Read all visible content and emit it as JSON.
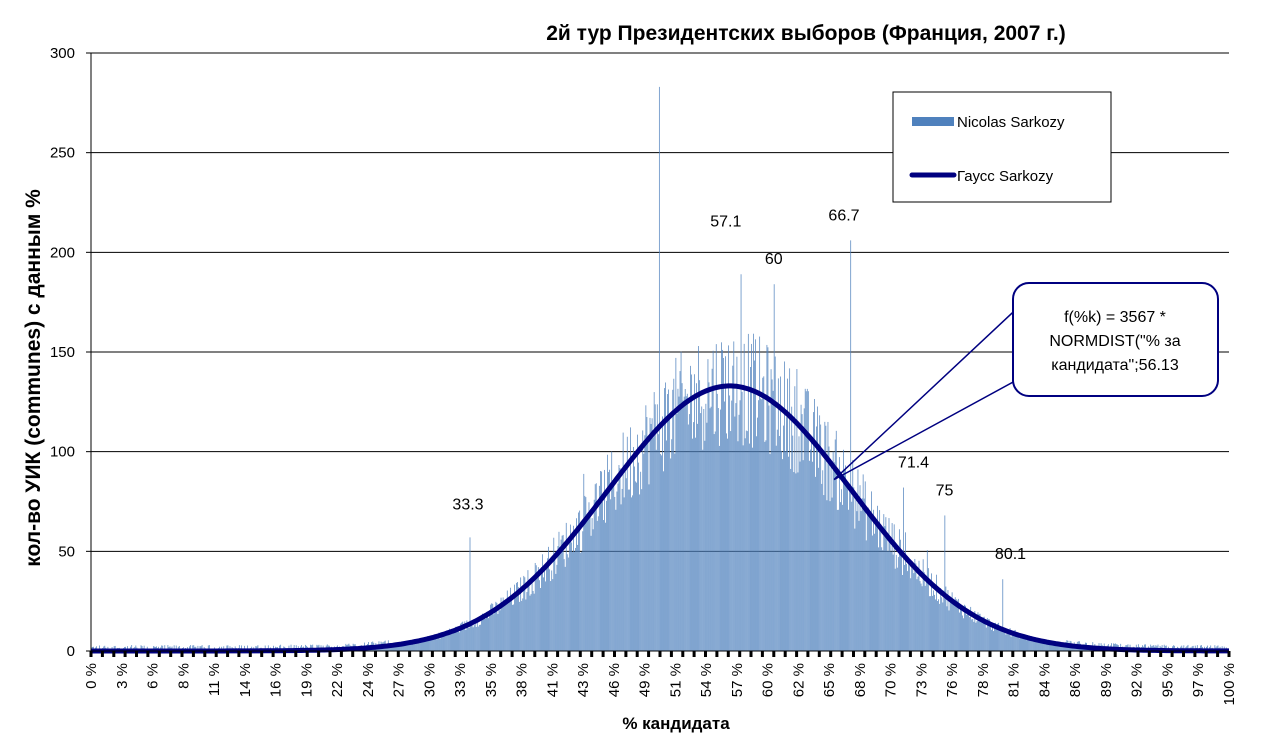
{
  "chart_data": {
    "type": "bar",
    "title": "2й тур Президентских выборов (Франция, 2007 г.)",
    "xlabel": "% кандидата",
    "ylabel": "кол-во УИК (communes) с данным %",
    "ylim": [
      0,
      300
    ],
    "y_ticks": [
      0,
      50,
      100,
      150,
      200,
      250,
      300
    ],
    "xlim": [
      0,
      100
    ],
    "x_tick_labels": [
      "0 %",
      "3 %",
      "6 %",
      "8 %",
      "11 %",
      "14 %",
      "16 %",
      "19 %",
      "22 %",
      "24 %",
      "27 %",
      "30 %",
      "33 %",
      "35 %",
      "38 %",
      "41 %",
      "43 %",
      "46 %",
      "49 %",
      "51 %",
      "54 %",
      "57 %",
      "60 %",
      "62 %",
      "65 %",
      "68 %",
      "70 %",
      "73 %",
      "76 %",
      "78 %",
      "81 %",
      "84 %",
      "86 %",
      "89 %",
      "92 %",
      "95 %",
      "97 %",
      "100 %"
    ],
    "grid": "horizontal",
    "legend_position": "top-right",
    "bar_color": "#4f81bd",
    "line_color": "#000080",
    "series": [
      {
        "name": "Nicolas Sarkozy",
        "kind": "bar",
        "description_points": [
          {
            "x": 33.3,
            "y": 57
          },
          {
            "x": 49.9,
            "y": 283
          },
          {
            "x": 57.1,
            "y": 189
          },
          {
            "x": 60,
            "y": 184
          },
          {
            "x": 66.7,
            "y": 206
          },
          {
            "x": 71.4,
            "y": 82
          },
          {
            "x": 75,
            "y": 68
          },
          {
            "x": 80.1,
            "y": 36
          }
        ],
        "gaussian_envelope": {
          "mean": 56.13,
          "sd": 10.7,
          "total": 3567
        }
      },
      {
        "name": "Гаусс Sarkozy",
        "kind": "line",
        "formula": {
          "total": 3567,
          "mean": 56.13,
          "sd": 10.7
        }
      }
    ],
    "annotations": [
      {
        "label": "33.3",
        "x": 33.3,
        "y": 57
      },
      {
        "label": "57.1",
        "x": 57.1,
        "y": 189
      },
      {
        "label": "60",
        "x": 60,
        "y": 184
      },
      {
        "label": "66.7",
        "x": 66.7,
        "y": 206
      },
      {
        "label": "71.4",
        "x": 71.4,
        "y": 82
      },
      {
        "label": "75",
        "x": 75,
        "y": 68
      },
      {
        "label": "80.1",
        "x": 80.1,
        "y": 36
      }
    ],
    "callout": {
      "lines": [
        "f(%k) = 3567 *",
        "NORMDIST(\"% за",
        "кандидата\";56.13"
      ],
      "points_to": {
        "x": 65.3,
        "y": 86
      }
    }
  }
}
